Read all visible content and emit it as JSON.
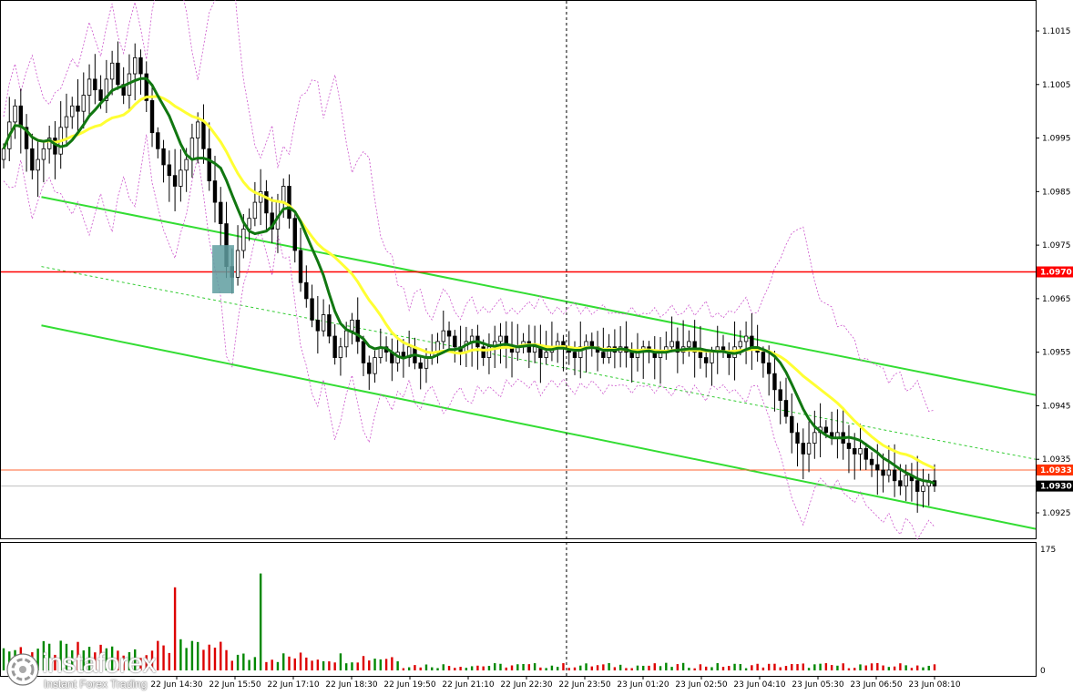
{
  "chart_data": {
    "type": "candlestick",
    "symbol_context": "EUR/USD",
    "price_axis": {
      "ticks": [
        "1.1015",
        "1.1005",
        "1.0995",
        "1.0985",
        "1.0975",
        "1.0965",
        "1.0955",
        "1.0945",
        "1.0935",
        "1.0925"
      ],
      "ylim": [
        1.092,
        1.102
      ]
    },
    "volume_axis": {
      "ticks": [
        "175",
        "0"
      ],
      "ylim": [
        0,
        175
      ]
    },
    "time_axis": {
      "labels": [
        "22 Jun 14:30",
        "22 Jun 15:50",
        "22 Jun 17:10",
        "22 Jun 18:30",
        "22 Jun 19:50",
        "22 Jun 21:10",
        "22 Jun 22:30",
        "22 Jun 23:50",
        "23 Jun 01:20",
        "23 Jun 02:50",
        "23 Jun 04:10",
        "23 Jun 05:30",
        "23 Jun 06:50",
        "23 Jun 08:10"
      ]
    },
    "price_tags": [
      {
        "value": "1.0970",
        "color": "#ff0000",
        "text_color": "#ffffff"
      },
      {
        "value": "1.0933",
        "color": "#ff3300",
        "text_color": "#ffffff"
      },
      {
        "value": "1.0930",
        "color": "#000000",
        "text_color": "#ffffff"
      }
    ],
    "horizontal_levels": [
      {
        "price": 1.097,
        "color": "#ff0000"
      },
      {
        "price": 1.0933,
        "color": "#ff6633"
      },
      {
        "price": 1.093,
        "color": "#c0c0c0"
      }
    ],
    "channel": {
      "upper": {
        "from": [
          0.04,
          1.0984
        ],
        "to": [
          1.0,
          1.0947
        ]
      },
      "lower": {
        "from": [
          0.04,
          1.096
        ],
        "to": [
          1.0,
          1.0922
        ]
      },
      "mid_dashed": {
        "from": [
          0.04,
          1.0971
        ],
        "to": [
          1.0,
          1.0935
        ]
      }
    },
    "entry_marker": {
      "x_range": [
        0.205,
        0.226
      ],
      "price_range": [
        1.0966,
        1.0975
      ],
      "color": "#5f9ea0"
    },
    "cursor_x": 0.547,
    "candles_close": [
      1.0993,
      1.0998,
      1.1001,
      1.0997,
      1.0993,
      1.0989,
      1.0991,
      1.0993,
      1.0995,
      1.0992,
      1.0997,
      1.0999,
      1.1001,
      1.1,
      1.1003,
      1.1006,
      1.1004,
      1.1002,
      1.1006,
      1.1009,
      1.1005,
      1.1003,
      1.1007,
      1.101,
      1.1007,
      1.1002,
      1.0996,
      1.0993,
      1.099,
      1.0988,
      1.0986,
      1.0989,
      1.0991,
      1.0995,
      1.0998,
      1.0993,
      1.0987,
      1.0983,
      1.0979,
      1.0971,
      1.0969,
      1.0974,
      1.0978,
      1.098,
      1.0983,
      1.0985,
      1.0981,
      1.0978,
      1.0983,
      1.0986,
      1.098,
      1.0974,
      1.0968,
      1.0965,
      1.0961,
      1.0959,
      1.0962,
      1.0958,
      1.0954,
      1.0956,
      1.0959,
      1.0961,
      1.0957,
      1.0953,
      1.0951,
      1.0954,
      1.0956,
      1.0955,
      1.0953,
      1.0955,
      1.0954,
      1.0956,
      1.0953,
      1.0952,
      1.0954,
      1.0955,
      1.0957,
      1.0959,
      1.0958,
      1.0956,
      1.0955,
      1.0957,
      1.0958,
      1.0956,
      1.0954,
      1.0956,
      1.0957,
      1.0958,
      1.0956,
      1.0955,
      1.0956,
      1.0957,
      1.0955,
      1.0956,
      1.0954,
      1.0955,
      1.0956,
      1.0957,
      1.0956,
      1.0955,
      1.0954,
      1.0956,
      1.0957,
      1.0956,
      1.0955,
      1.0954,
      1.0956,
      1.0955,
      1.0956,
      1.0955,
      1.0954,
      1.0955,
      1.0956,
      1.0955,
      1.0954,
      1.0955,
      1.0956,
      1.0957,
      1.0955,
      1.0956,
      1.0957,
      1.0955,
      1.0954,
      1.0953,
      1.0955,
      1.0956,
      1.0955,
      1.0954,
      1.0956,
      1.0957,
      1.0958,
      1.0956,
      1.0955,
      1.0953,
      1.0951,
      1.0948,
      1.0946,
      1.0943,
      1.094,
      1.0938,
      1.0936,
      1.0938,
      1.094,
      1.0941,
      1.094,
      1.0939,
      1.094,
      1.0938,
      1.0937,
      1.0936,
      1.0937,
      1.0935,
      1.0934,
      1.0933,
      1.0932,
      1.0933,
      1.0931,
      1.093,
      1.0932,
      1.0931,
      1.0929,
      1.093,
      1.0931,
      1.093
    ],
    "volume_scale_note": "",
    "logo": {
      "brand": "instaforex",
      "tagline": "Instant Forex Trading"
    }
  }
}
